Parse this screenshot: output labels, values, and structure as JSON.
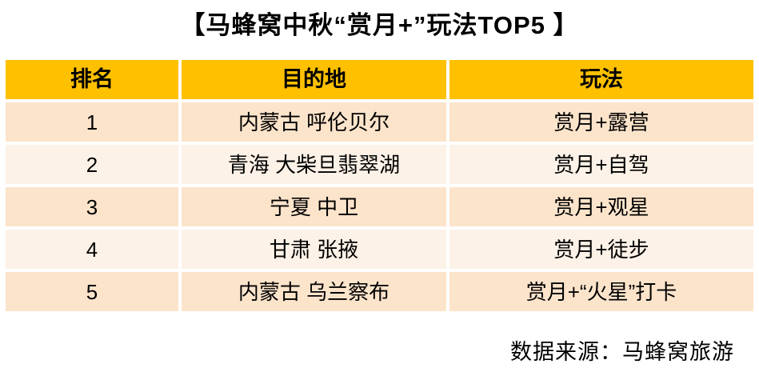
{
  "title": "【马蜂窝中秋“赏月+”玩法TOP5 】",
  "chart_data": {
    "type": "table",
    "title": "【马蜂窝中秋“赏月+”玩法TOP5 】",
    "columns": [
      "排名",
      "目的地",
      "玩法"
    ],
    "rows": [
      [
        "1",
        "内蒙古 呼伦贝尔",
        "赏月+露营"
      ],
      [
        "2",
        "青海 大柴旦翡翠湖",
        "赏月+自驾"
      ],
      [
        "3",
        "宁夏 中卫",
        "赏月+观星"
      ],
      [
        "4",
        "甘肃 张掖",
        "赏月+徒步"
      ],
      [
        "5",
        "内蒙古 乌兰察布",
        "赏月+“火星”打卡"
      ]
    ],
    "layout": {
      "header_position": "top",
      "row_banding": true,
      "grid_gaps": "white"
    }
  },
  "footer": {
    "source": "数据来源：马蜂窝旅游"
  },
  "colors": {
    "header_bg": "#FFC000",
    "row_odd_bg": "#FCE4CB",
    "row_even_bg": "#FDF2E7",
    "text": "#000000",
    "page_bg": "#FFFFFF"
  }
}
